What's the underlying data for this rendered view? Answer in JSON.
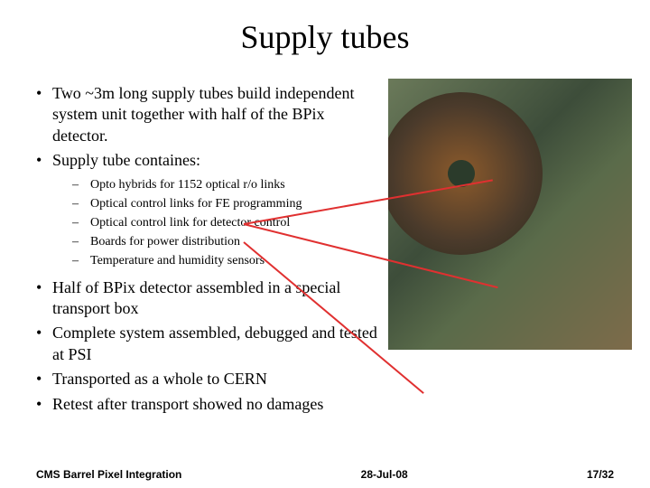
{
  "title": "Supply tubes",
  "bullets": {
    "b1": "Two ~3m long supply tubes build independent system unit together with half of the BPix detector.",
    "b2": "Supply tube containes:",
    "sub1": "Opto hybrids for 1152 optical r/o links",
    "sub2": "Optical control links for FE programming",
    "sub3": "Optical control link for detector control",
    "sub4": "Boards for power distribution",
    "sub5": "Temperature and humidity sensors",
    "b3": "Half of BPix detector assembled in a special transport box",
    "b4": "Complete system  assembled, debugged and tested at PSI",
    "b5": "Transported as a whole to CERN",
    "b6": "Retest after transport showed no damages"
  },
  "footer": {
    "left": "CMS Barrel Pixel Integration",
    "center": "28-Jul-08",
    "right": "17/32"
  },
  "colors": {
    "line_color": "#e03030",
    "background": "#ffffff",
    "text": "#000000"
  },
  "font": {
    "title_size": 36,
    "body_size": 18,
    "sub_size": 14,
    "footer_size": 12
  }
}
